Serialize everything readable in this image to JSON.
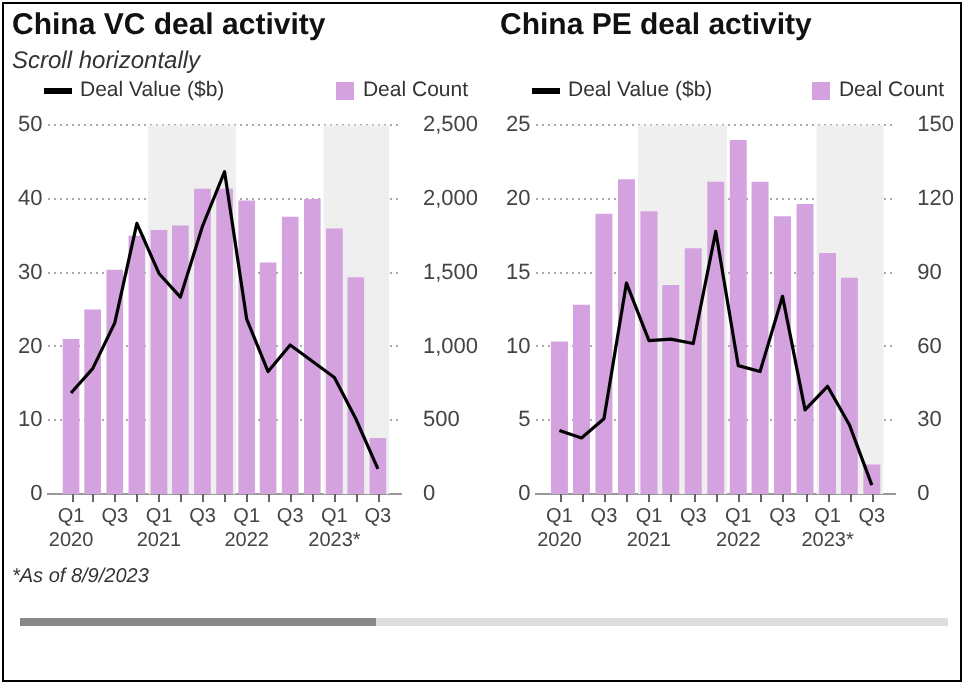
{
  "chart_data": [
    {
      "type": "bar",
      "title": "China VC deal activity",
      "subtitle": "Scroll horizontally",
      "x": [
        "2020-02-15",
        "2020-05-15",
        "2020-08-15",
        "2020-11-15",
        "2021-02-15",
        "2021-05-15",
        "2021-08-15",
        "2021-11-15",
        "2022-02-15",
        "2022-05-15",
        "2022-08-15",
        "2022-11-15",
        "2023-02-15",
        "2023-05-15",
        "2023-08-15"
      ],
      "xlim": [
        "2020-01-01",
        "2023-10-01"
      ],
      "xticks": [
        {
          "value": "2020-02-15",
          "label": "Q1\n2020"
        },
        {
          "value": "2020-05-15",
          "label": null
        },
        {
          "value": "2020-08-15",
          "label": "Q3"
        },
        {
          "value": "2020-11-15",
          "label": null
        },
        {
          "value": "2021-02-15",
          "label": "Q1\n2021"
        },
        {
          "value": "2021-05-15",
          "label": null
        },
        {
          "value": "2021-08-15",
          "label": "Q3"
        },
        {
          "value": "2021-11-15",
          "label": null
        },
        {
          "value": "2022-02-15",
          "label": "Q1\n2022"
        },
        {
          "value": "2022-05-15",
          "label": null
        },
        {
          "value": "2022-08-15",
          "label": "Q3"
        },
        {
          "value": "2022-11-15",
          "label": null
        },
        {
          "value": "2023-02-15",
          "label": "Q1\n2023*"
        },
        {
          "value": "2023-05-15",
          "label": null
        },
        {
          "value": "2023-08-15",
          "label": "Q3"
        }
      ],
      "series": [
        {
          "name": "Deal Value ($b)",
          "type": "line",
          "color": "#000000",
          "values": [
            13.7,
            17,
            23.2,
            36.7,
            29.9,
            26.7,
            36.3,
            43.7,
            23.7,
            16.6,
            20.2,
            18,
            15.8,
            10.2,
            3.4
          ]
        },
        {
          "name": "Deal Count",
          "axis": "y2",
          "color": "#d4a2df",
          "values": [
            1050,
            1250,
            1520,
            1750,
            1790,
            1820,
            2070,
            2070,
            1990,
            1570,
            1880,
            2000,
            1800,
            1470,
            380
          ]
        }
      ],
      "ylim": [
        0,
        50
      ],
      "yticks": [
        0,
        10,
        20,
        30,
        40,
        50
      ],
      "y2lim": [
        0,
        2500
      ],
      "y2ticks": [
        0,
        500,
        {
          "value": 1000,
          "label": "1,000"
        },
        {
          "value": 1500,
          "label": "1,500"
        },
        {
          "value": 2000,
          "label": "2,000"
        },
        {
          "value": 2500,
          "label": "2,500"
        }
      ],
      "bands": [
        {
          "axis": "x",
          "from": "2021-01-01",
          "to": "2022-01-01",
          "color": "#efefef"
        },
        {
          "axis": "x",
          "from": "2023-01-01",
          "to": "2023-10-01",
          "color": "#efefef"
        }
      ],
      "grid": "y",
      "legend": "top",
      "marker": "none",
      "line_style": "solid",
      "annotations": [
        "*As of 8/9/2023"
      ]
    },
    {
      "type": "bar",
      "title": "China PE deal activity",
      "x": [
        "2020-02-15",
        "2020-05-15",
        "2020-08-15",
        "2020-11-15",
        "2021-02-15",
        "2021-05-15",
        "2021-08-15",
        "2021-11-15",
        "2022-02-15",
        "2022-05-15",
        "2022-08-15",
        "2022-11-15",
        "2023-02-15",
        "2023-05-15",
        "2023-08-15"
      ],
      "xlim": [
        "2020-01-01",
        "2023-10-01"
      ],
      "xticks": [
        {
          "value": "2020-02-15",
          "label": "Q1\n2020"
        },
        {
          "value": "2020-05-15",
          "label": null
        },
        {
          "value": "2020-08-15",
          "label": "Q3"
        },
        {
          "value": "2020-11-15",
          "label": null
        },
        {
          "value": "2021-02-15",
          "label": "Q1\n2021"
        },
        {
          "value": "2021-05-15",
          "label": null
        },
        {
          "value": "2021-08-15",
          "label": "Q3"
        },
        {
          "value": "2021-11-15",
          "label": null
        },
        {
          "value": "2022-02-15",
          "label": "Q1\n2022"
        },
        {
          "value": "2022-05-15",
          "label": null
        },
        {
          "value": "2022-08-15",
          "label": "Q3"
        },
        {
          "value": "2022-11-15",
          "label": null
        },
        {
          "value": "2023-02-15",
          "label": "Q1\n2023*"
        },
        {
          "value": "2023-05-15",
          "label": null
        },
        {
          "value": "2023-08-15",
          "label": "Q3"
        }
      ],
      "series": [
        {
          "name": "Deal Value ($b)",
          "type": "line",
          "color": "#000000",
          "values": [
            4.3,
            3.8,
            5.1,
            14.3,
            10.4,
            10.5,
            10.2,
            17.8,
            8.7,
            8.3,
            13.4,
            5.7,
            7.3,
            4.7,
            0.6
          ]
        },
        {
          "name": "Deal Count",
          "axis": "y2",
          "color": "#d4a2df",
          "values": [
            62,
            77,
            114,
            128,
            115,
            85,
            100,
            127,
            144,
            127,
            113,
            118,
            98,
            88,
            12
          ]
        }
      ],
      "ylim": [
        0,
        25
      ],
      "yticks": [
        0,
        5,
        10,
        15,
        20,
        25
      ],
      "y2lim": [
        0,
        150
      ],
      "y2ticks": [
        0,
        30,
        60,
        90,
        120,
        150
      ],
      "bands": [
        {
          "axis": "x",
          "from": "2021-01-01",
          "to": "2022-01-01",
          "color": "#efefef"
        },
        {
          "axis": "x",
          "from": "2023-01-01",
          "to": "2023-10-01",
          "color": "#efefef"
        }
      ],
      "grid": "y",
      "legend": "top",
      "marker": "none",
      "line_style": "solid"
    }
  ]
}
